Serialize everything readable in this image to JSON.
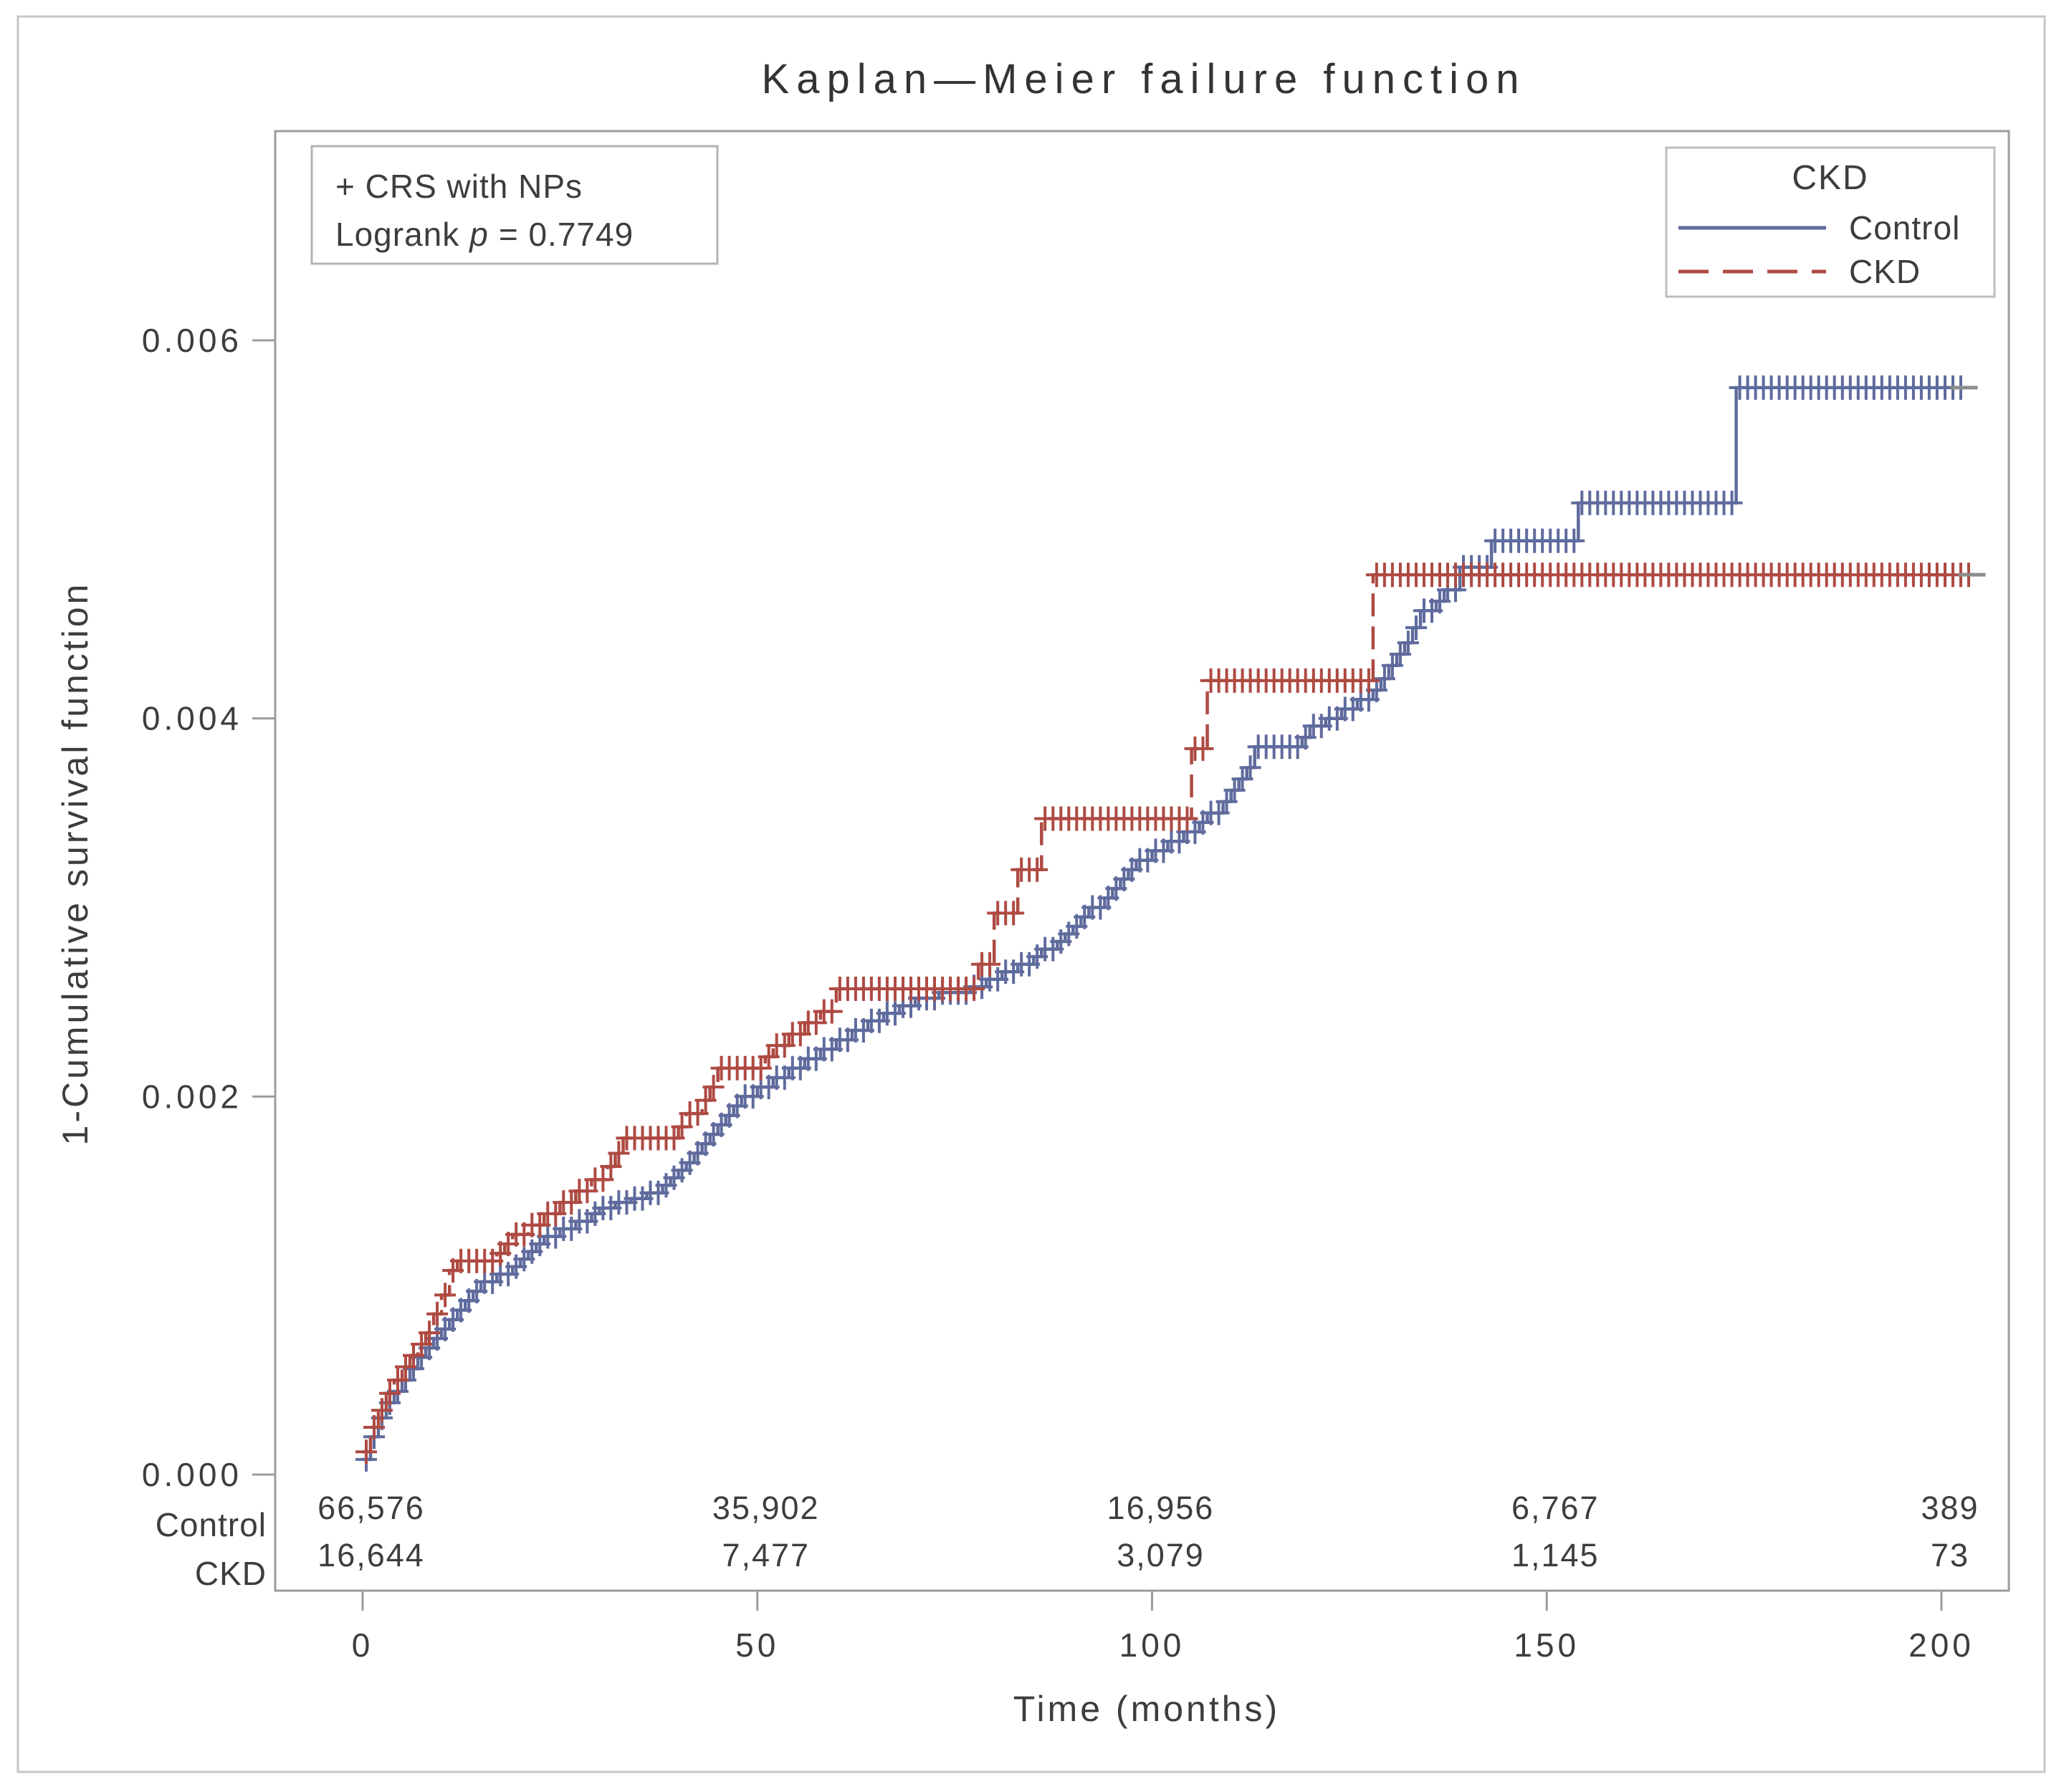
{
  "figure": {
    "title": "Kaplan—Meier failure function",
    "x_axis_label": "Time (months)",
    "y_axis_label": "1-Cumulative survival function"
  },
  "annotation_box": {
    "censor_note": "+ CRS with NPs",
    "logrank_prefix": "Logrank",
    "logrank_stat": "p",
    "logrank_value": "= 0.7749"
  },
  "legend": {
    "title": "CKD",
    "entries": [
      {
        "label": "Control",
        "style": "solid",
        "color": "#5f6b9d"
      },
      {
        "label": "CKD",
        "style": "dashed",
        "color": "#ae4a42"
      }
    ]
  },
  "axes": {
    "x": {
      "tick_labels": [
        "0",
        "50",
        "100",
        "150",
        "200"
      ],
      "tick_values": [
        0,
        50,
        100,
        150,
        200
      ]
    },
    "y": {
      "tick_labels": [
        "0.000",
        "0.002",
        "0.004",
        "0.006"
      ],
      "tick_values": [
        0,
        0.002,
        0.004,
        0.006
      ]
    }
  },
  "at_risk": {
    "rows": [
      {
        "label": "Control",
        "values": [
          "66,576",
          "35,902",
          "16,956",
          "6,767",
          "389"
        ]
      },
      {
        "label": "CKD",
        "values": [
          "16,644",
          "7,477",
          "3,079",
          "1,145",
          "73"
        ]
      }
    ]
  },
  "chart_data": {
    "type": "line",
    "subtype": "kaplan_meier_failure_step",
    "title": "Kaplan—Meier failure function",
    "xlabel": "Time (months)",
    "ylabel": "1-Cumulative survival function",
    "xlim": [
      -11,
      208.5
    ],
    "ylim": [
      -0.00061,
      0.0071
    ],
    "x_ticks": [
      0,
      50,
      100,
      150,
      200
    ],
    "y_ticks": [
      0,
      0.002,
      0.004,
      0.006
    ],
    "grid": false,
    "legend_position": "top-right",
    "logrank_p": 0.7749,
    "censor_mark_spacing_months": 1.0,
    "series": [
      {
        "name": "Control",
        "color": "#5f6b9d",
        "line_style": "solid",
        "steps": [
          [
            0,
            8e-05
          ],
          [
            1,
            0.0002
          ],
          [
            2,
            0.0003
          ],
          [
            3,
            0.00038
          ],
          [
            4,
            0.00044
          ],
          [
            5,
            0.0005
          ],
          [
            6,
            0.00056
          ],
          [
            7,
            0.00062
          ],
          [
            8,
            0.00067
          ],
          [
            9,
            0.00072
          ],
          [
            10,
            0.00077
          ],
          [
            11,
            0.00082
          ],
          [
            12,
            0.00087
          ],
          [
            13,
            0.00092
          ],
          [
            14,
            0.00097
          ],
          [
            15,
            0.00102
          ],
          [
            17,
            0.00106
          ],
          [
            19,
            0.0011
          ],
          [
            20,
            0.00114
          ],
          [
            21,
            0.00118
          ],
          [
            22,
            0.00122
          ],
          [
            23,
            0.00126
          ],
          [
            25,
            0.0013
          ],
          [
            27,
            0.00134
          ],
          [
            29,
            0.00138
          ],
          [
            30,
            0.00141
          ],
          [
            32,
            0.00144
          ],
          [
            34,
            0.00146
          ],
          [
            36,
            0.00149
          ],
          [
            38,
            0.00153
          ],
          [
            39,
            0.00157
          ],
          [
            40,
            0.00161
          ],
          [
            41,
            0.00165
          ],
          [
            42,
            0.0017
          ],
          [
            43,
            0.00175
          ],
          [
            44,
            0.0018
          ],
          [
            45,
            0.00185
          ],
          [
            46,
            0.0019
          ],
          [
            47,
            0.00195
          ],
          [
            48,
            0.002
          ],
          [
            50,
            0.00205
          ],
          [
            52,
            0.0021
          ],
          [
            54,
            0.00215
          ],
          [
            56,
            0.0022
          ],
          [
            58,
            0.00225
          ],
          [
            60,
            0.0023
          ],
          [
            62,
            0.00235
          ],
          [
            64,
            0.0024
          ],
          [
            66,
            0.00244
          ],
          [
            68,
            0.00248
          ],
          [
            70,
            0.00252
          ],
          [
            73,
            0.00255
          ],
          [
            77,
            0.00258
          ],
          [
            79,
            0.00262
          ],
          [
            81,
            0.00266
          ],
          [
            83,
            0.0027
          ],
          [
            85,
            0.00274
          ],
          [
            86,
            0.00278
          ],
          [
            88,
            0.00282
          ],
          [
            89,
            0.00286
          ],
          [
            90,
            0.0029
          ],
          [
            91,
            0.00295
          ],
          [
            92,
            0.003
          ],
          [
            94,
            0.00305
          ],
          [
            95,
            0.0031
          ],
          [
            96,
            0.00315
          ],
          [
            97,
            0.0032
          ],
          [
            98,
            0.00325
          ],
          [
            100,
            0.0033
          ],
          [
            102,
            0.00335
          ],
          [
            104,
            0.0034
          ],
          [
            106,
            0.00345
          ],
          [
            107,
            0.0035
          ],
          [
            109,
            0.00356
          ],
          [
            110,
            0.00362
          ],
          [
            111,
            0.00368
          ],
          [
            112,
            0.00374
          ],
          [
            113,
            0.00385
          ],
          [
            119,
            0.0039
          ],
          [
            120,
            0.00396
          ],
          [
            122,
            0.004
          ],
          [
            124,
            0.00405
          ],
          [
            126,
            0.0041
          ],
          [
            128,
            0.00415
          ],
          [
            129,
            0.00421
          ],
          [
            130,
            0.00428
          ],
          [
            131,
            0.00434
          ],
          [
            132,
            0.0044
          ],
          [
            133,
            0.00448
          ],
          [
            134,
            0.00457
          ],
          [
            136,
            0.00462
          ],
          [
            137,
            0.00468
          ],
          [
            139,
            0.0048
          ],
          [
            143,
            0.00494
          ],
          [
            154,
            0.00514
          ],
          [
            174,
            0.00575
          ],
          [
            203.5,
            0.00575
          ]
        ]
      },
      {
        "name": "CKD",
        "color": "#ae4a42",
        "line_style": "dashed",
        "steps": [
          [
            0,
            0.00012
          ],
          [
            1,
            0.00025
          ],
          [
            2,
            0.00034
          ],
          [
            3,
            0.00043
          ],
          [
            4,
            0.0005
          ],
          [
            5,
            0.00057
          ],
          [
            6,
            0.00063
          ],
          [
            7,
            0.00069
          ],
          [
            8,
            0.00075
          ],
          [
            9,
            0.00085
          ],
          [
            10,
            0.00095
          ],
          [
            11,
            0.00108
          ],
          [
            12,
            0.00113
          ],
          [
            17,
            0.00117
          ],
          [
            18,
            0.00122
          ],
          [
            19,
            0.00127
          ],
          [
            21,
            0.00132
          ],
          [
            23,
            0.00138
          ],
          [
            25,
            0.00144
          ],
          [
            27,
            0.0015
          ],
          [
            29,
            0.00156
          ],
          [
            31,
            0.00163
          ],
          [
            32,
            0.0017
          ],
          [
            33,
            0.00178
          ],
          [
            40,
            0.00184
          ],
          [
            41,
            0.00191
          ],
          [
            43,
            0.00198
          ],
          [
            44,
            0.00205
          ],
          [
            45,
            0.00215
          ],
          [
            51,
            0.00221
          ],
          [
            52,
            0.00227
          ],
          [
            54,
            0.00233
          ],
          [
            56,
            0.00239
          ],
          [
            58,
            0.00245
          ],
          [
            60,
            0.00257
          ],
          [
            78,
            0.0027
          ],
          [
            80,
            0.00297
          ],
          [
            83,
            0.0032
          ],
          [
            86,
            0.00347
          ],
          [
            105,
            0.00384
          ],
          [
            107,
            0.0042
          ],
          [
            128,
            0.00476
          ],
          [
            204.5,
            0.00476
          ]
        ]
      }
    ]
  },
  "colors": {
    "frame": "#9c9c9c",
    "outer_border": "#c6c6c6",
    "text": "#3d3d3d",
    "end_cap": "#8c8c8c",
    "control": "#5f6b9d",
    "ckd": "#ae4a42"
  }
}
